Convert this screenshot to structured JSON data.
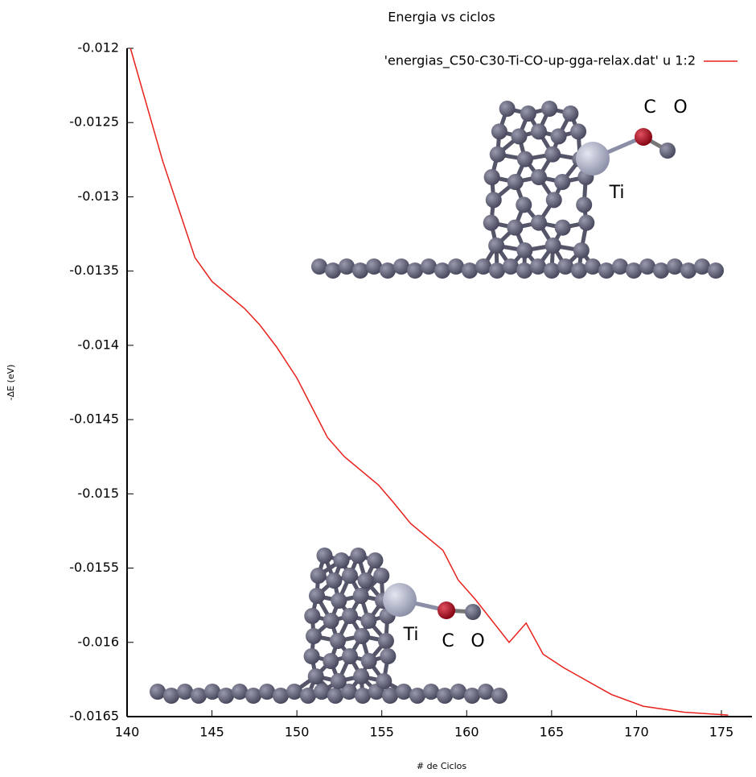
{
  "chart_data": {
    "type": "line",
    "title": "Energia vs ciclos",
    "x_label": "# de Ciclos",
    "y_label": "-ΔE (eV)",
    "x": [
      140.2,
      142.1,
      144.0,
      145.0,
      146.9,
      147.8,
      148.8,
      150.0,
      151.8,
      152.8,
      154.8,
      155.7,
      156.7,
      158.6,
      159.5,
      160.5,
      162.5,
      163.5,
      164.5,
      165.7,
      168.5,
      170.4,
      172.8,
      175.4
    ],
    "series": [
      {
        "name": "'energias_C50-C30-Ti-CO-up-gga-relax.dat' u 1:2",
        "color": "#e8211c",
        "values": [
          -0.012,
          -0.01276,
          -0.01341,
          -0.01357,
          -0.01375,
          -0.01386,
          -0.01401,
          -0.01422,
          -0.01462,
          -0.01475,
          -0.01494,
          -0.01506,
          -0.0152,
          -0.01538,
          -0.01558,
          -0.01571,
          -0.016,
          -0.01587,
          -0.01608,
          -0.01617,
          -0.01635,
          -0.01643,
          -0.01647,
          -0.01649
        ]
      }
    ],
    "xlim": [
      140,
      176.8
    ],
    "ylim": [
      -0.0165,
      -0.012
    ],
    "xticks": [
      140,
      145,
      150,
      155,
      160,
      165,
      170,
      175
    ],
    "yticks": [
      -0.012,
      -0.0125,
      -0.013,
      -0.0135,
      -0.014,
      -0.0145,
      -0.015,
      -0.0155,
      -0.016,
      -0.0165
    ],
    "legend": "top-right",
    "annotations": [
      "C",
      "O",
      "Ti",
      "Ti",
      "C",
      "O"
    ]
  }
}
